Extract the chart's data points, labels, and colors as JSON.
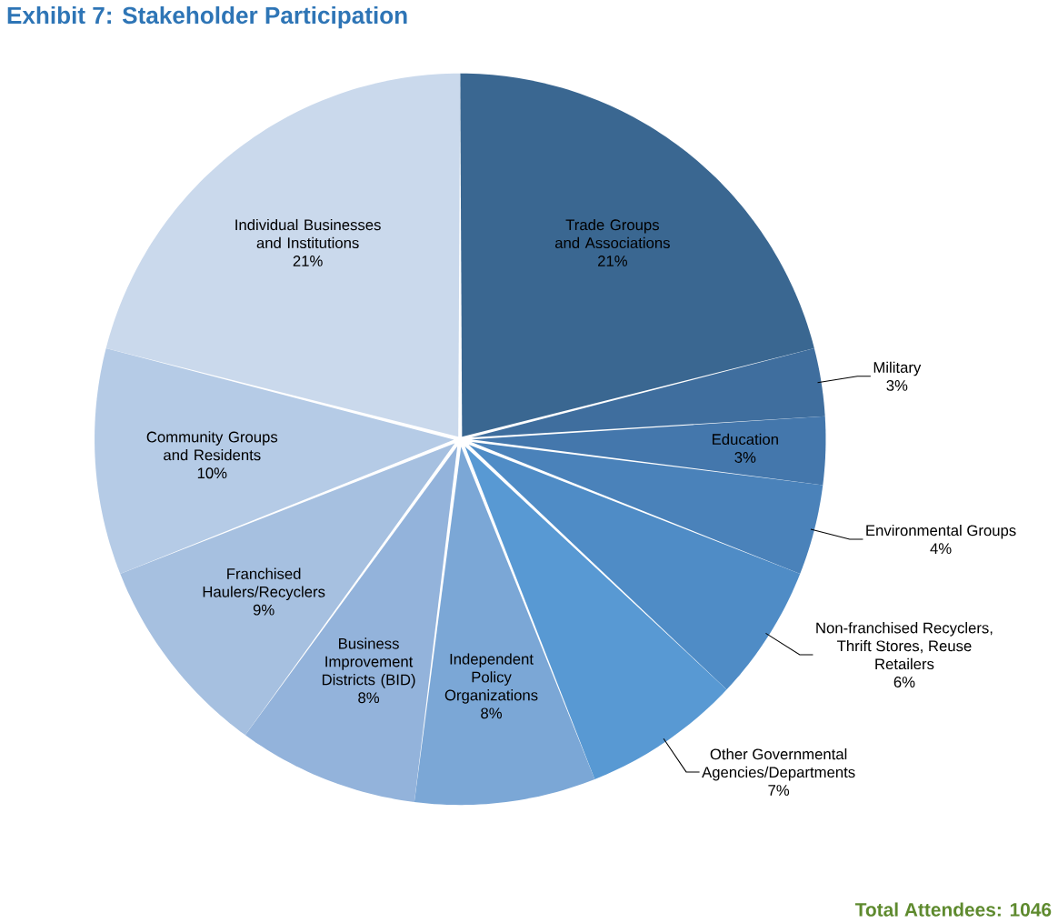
{
  "chart_data": {
    "type": "pie",
    "title": "Exhibit 7: Stakeholder Participation",
    "categories": [
      "Trade Groups and Associations",
      "Military",
      "Education",
      "Environmental Groups",
      "Non-franchised Recyclers, Thrift Stores, Reuse Retailers",
      "Other Governmental Agencies/Departments",
      "Independent Policy Organizations",
      "Business Improvement Districts (BID)",
      "Franchised Haulers/Recyclers",
      "Community Groups and Residents",
      "Individual Businesses and Institutions"
    ],
    "values": [
      21,
      3,
      3,
      4,
      6,
      7,
      8,
      8,
      9,
      10,
      21
    ],
    "value_labels": [
      "21%",
      "3%",
      "3%",
      "4%",
      "6%",
      "7%",
      "8%",
      "8%",
      "9%",
      "10%",
      "21%"
    ],
    "colors": [
      "#3a6791",
      "#3f6e9e",
      "#4477ac",
      "#4a82ba",
      "#4f8cc6",
      "#5899d3",
      "#7ba7d6",
      "#93b3db",
      "#a6c0e0",
      "#b5cbe6",
      "#cad9ec"
    ],
    "annotations": [
      "Total Attendees:  1046"
    ]
  }
}
